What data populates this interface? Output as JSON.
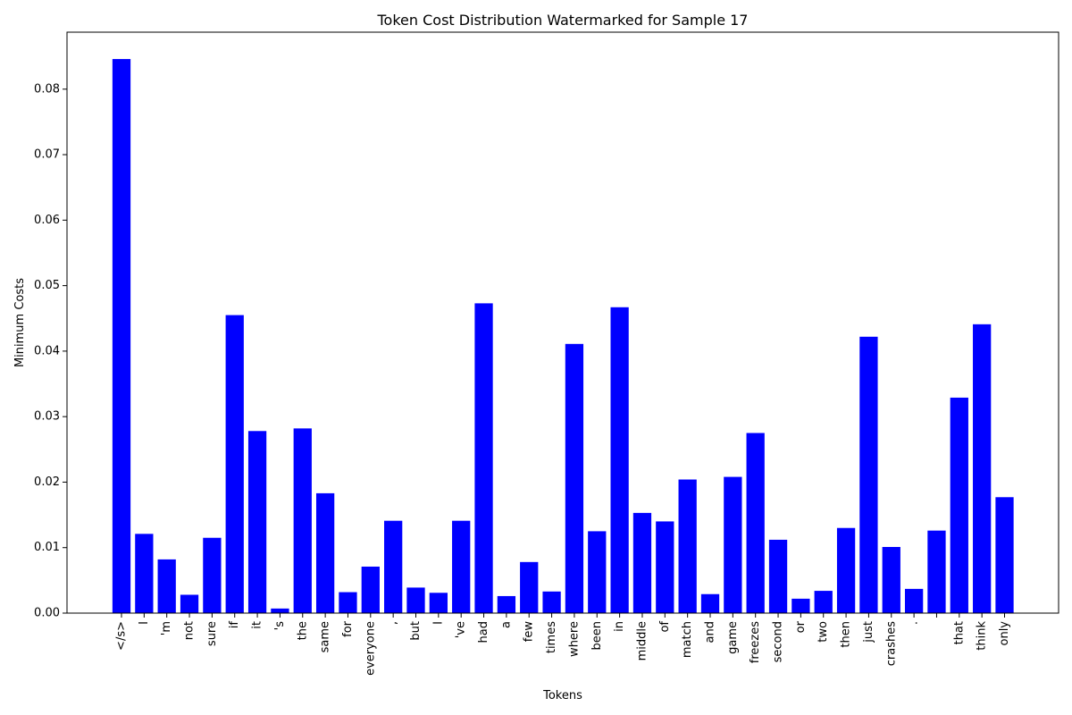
{
  "chart_data": {
    "type": "bar",
    "title": "Token Cost Distribution Watermarked for Sample 17",
    "xlabel": "Tokens",
    "ylabel": "Minimum Costs",
    "ylim": [
      0,
      0.0887
    ],
    "yticks": [
      "0.00",
      "0.01",
      "0.02",
      "0.03",
      "0.04",
      "0.05",
      "0.06",
      "0.07",
      "0.08"
    ],
    "grid": false,
    "bar_color": "#0000ff",
    "categories": [
      "</s>",
      "I",
      "'m",
      "not",
      "sure",
      "if",
      "it",
      "'s",
      "the",
      "same",
      "for",
      "everyone",
      ",",
      "but",
      "I",
      "'ve",
      "had",
      "a",
      "few",
      "times",
      "where",
      "been",
      "in",
      "middle",
      "of",
      "match",
      "and",
      "game",
      "freezes",
      "second",
      "or",
      "two",
      "then",
      "just",
      "crashes",
      ".",
      "",
      "that",
      "think",
      "only"
    ],
    "values": [
      0.0846,
      0.0121,
      0.0082,
      0.0028,
      0.0115,
      0.0455,
      0.0278,
      0.0007,
      0.0282,
      0.0183,
      0.0032,
      0.0071,
      0.0141,
      0.0039,
      0.0031,
      0.0141,
      0.0473,
      0.0026,
      0.0078,
      0.0033,
      0.0411,
      0.0125,
      0.0467,
      0.0153,
      0.014,
      0.0204,
      0.0029,
      0.0208,
      0.0275,
      0.0112,
      0.0022,
      0.0034,
      0.013,
      0.0422,
      0.0101,
      0.0037,
      0.0126,
      0.0329,
      0.0441,
      0.0177
    ]
  }
}
